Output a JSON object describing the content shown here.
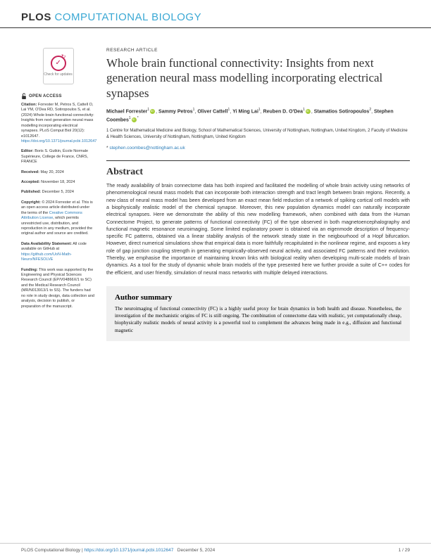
{
  "journal": {
    "logo1": "PLOS",
    "logo2": "COMPUTATIONAL BIOLOGY"
  },
  "article": {
    "type": "RESEARCH ARTICLE",
    "title": "Whole brain functional connectivity: Insights from next generation neural mass modelling incorporating electrical synapses",
    "authors_html": "Michael Forrester|1|o, Sammy Petros|1, Oliver Cattell|1, Yi Ming Lai|1, Reuben D. O'Dea|1|o, Stamatios Sotiropoulos|2, Stephen Coombes|1|o|*",
    "affiliations": "1 Centre for Mathematical Medicine and Biology, School of Mathematical Sciences, University of Nottingham, Nottingham, United Kingdom, 2 Faculty of Medicine & Health Sciences, University of Nottingham, Nottingham, United Kingdom",
    "corresponding_email": "stephen.coombes@nottingham.ac.uk",
    "abstract_heading": "Abstract",
    "abstract": "The ready availability of brain connectome data has both inspired and facilitated the modelling of whole brain activity using networks of phenomenological neural mass models that can incorporate both interaction strength and tract length between brain regions. Recently, a new class of neural mass model has been developed from an exact mean field reduction of a network of spiking cortical cell models with a biophysically realistic model of the chemical synapse. Moreover, this new population dynamics model can naturally incorporate electrical synapses. Here we demonstrate the ability of this new modelling framework, when combined with data from the Human Connectome Project, to generate patterns of functional connectivity (FC) of the type observed in both magnetoencephalography and functional magnetic resonance neuroimaging. Some limited explanatory power is obtained via an eigenmode description of frequency-specific FC patterns, obtained via a linear stability analysis of the network steady state in the neigbourhood of a Hopf bifurcation. However, direct numerical simulations show that empirical data is more faithfully recapitulated in the nonlinear regime, and exposes a key role of gap junction coupling strength in generating empirically-observed neural activity, and associated FC patterns and their evolution. Thereby, we emphasise the importance of maintaining known links with biological reality when developing multi-scale models of brain dynamics. As a tool for the study of dynamic whole brain models of the type presented here we further provide a suite of C++ codes for the efficient, and user friendly, simulation of neural mass networks with multiple delayed interactions.",
    "author_summary_heading": "Author summary",
    "author_summary": "The neuroimaging of functional connectivity (FC) is a highly useful proxy for brain dynamics in both health and disease. Nonetheless, the investigation of the mechanistic origins of FC is still ongoing. The combination of connectome data with realistic, yet computationally cheap, biophysically realistic models of neural activity is a powerful tool to complement the advances being made in e.g., diffusion and functional magnetic"
  },
  "sidebar": {
    "check_updates": "Check for updates",
    "open_access": "OPEN ACCESS",
    "citation_label": "Citation:",
    "citation": " Forrester M, Petros S, Cattell O, Lai YM, O'Dea RD, Sotiropoulos S, et al. (2024) Whole brain functional connectivity: Insights from next generation neural mass modelling incorporating electrical synapses. PLoS Comput Biol 20(12): e1012647. ",
    "citation_link": "https://doi.org/10.1371/journal.pcbi.1012647",
    "editor_label": "Editor:",
    "editor": " Boris S. Gutkin, École Normale Supérieure, College de France, CNRS, FRANCE",
    "received_label": "Received:",
    "received": " May 20, 2024",
    "accepted_label": "Accepted:",
    "accepted": " November 18, 2024",
    "published_label": "Published:",
    "published": " December 5, 2024",
    "copyright_label": "Copyright:",
    "copyright": " © 2024 Forrester et al. This is an open access article distributed under the terms of the ",
    "cc_link": "Creative Commons Attribution License",
    "copyright2": ", which permits unrestricted use, distribution, and reproduction in any medium, provided the original author and source are credited.",
    "data_label": "Data Availability Statement:",
    "data": " All code available on GitHub at ",
    "data_link": "https://github.com/UoN-Math-Neuro/NFESOLVE",
    "funding_label": "Funding:",
    "funding": " This work was supported by the Engineering and Physical Sciences Research Council (EP/V04866X/1 to SC) and the Medical Research Council (MR/N013913/1 to SS). The funders had no role in study design, data collection and analysis, decision to publish, or preparation of the manuscript."
  },
  "footer": {
    "journal": "PLOS Computational Biology | ",
    "doi": "https://doi.org/10.1371/journal.pcbi.1012647",
    "date": "December 5, 2024",
    "page": "1 / 29"
  },
  "style_colors": {
    "brand_blue": "#3aa8d4",
    "link_blue": "#2a7cb8",
    "orcid_green": "#a6ce39",
    "check_pink": "#c62358"
  }
}
